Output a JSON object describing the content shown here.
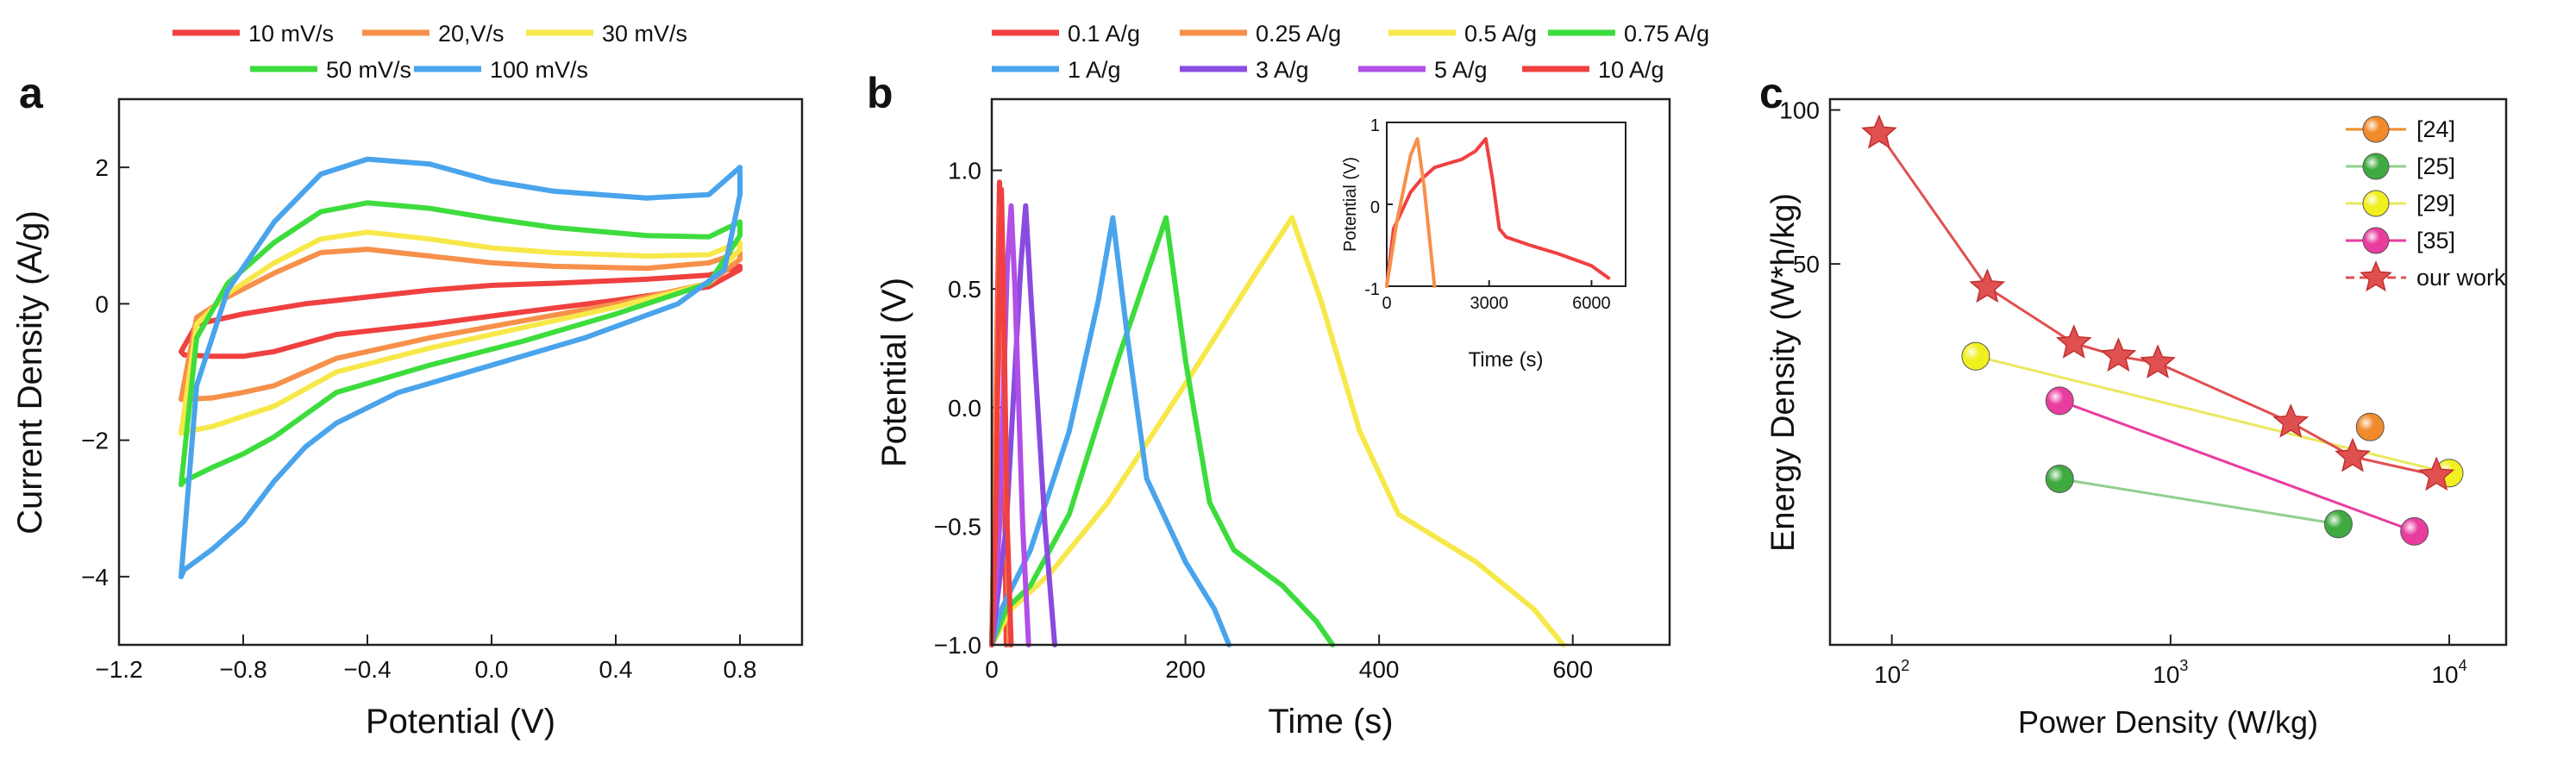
{
  "panels": {
    "a": "a",
    "b": "b",
    "c": "c"
  },
  "chart_data": [
    {
      "type": "line",
      "panel": "a",
      "title": "",
      "xlabel": "Potential (V)",
      "ylabel": "Current Density (A/g)",
      "xlim": [
        -1.2,
        1.0
      ],
      "ylim": [
        -5,
        3
      ],
      "xticks": [
        -1.2,
        -0.8,
        -0.4,
        0.0,
        0.4,
        0.8
      ],
      "xtick_labels": [
        "−1.2",
        "−0.8",
        "−0.4",
        "0.0",
        "0.4",
        "0.8"
      ],
      "yticks": [
        -4,
        -2,
        0,
        2
      ],
      "ytick_labels": [
        "−4",
        "−2",
        "0",
        "2"
      ],
      "legend_position": "top",
      "series": [
        {
          "name": "10 mV/s",
          "color": "#f04040",
          "x": [
            -1.0,
            -0.99,
            -0.9,
            -0.8,
            -0.7,
            -0.5,
            -0.2,
            0.1,
            0.4,
            0.7,
            0.8,
            0.8,
            0.7,
            0.5,
            0.2,
            0.0,
            -0.2,
            -0.4,
            -0.6,
            -0.8,
            -0.95,
            -1.0
          ],
          "y": [
            -0.7,
            -0.75,
            -0.77,
            -0.77,
            -0.7,
            -0.45,
            -0.3,
            -0.12,
            0.05,
            0.25,
            0.5,
            0.55,
            0.42,
            0.36,
            0.3,
            0.27,
            0.2,
            0.1,
            0.0,
            -0.15,
            -0.3,
            -0.7
          ]
        },
        {
          "name": "20,V/s",
          "color": "#f6904a",
          "x": [
            -1.0,
            -0.99,
            -0.9,
            -0.8,
            -0.7,
            -0.5,
            -0.2,
            0.1,
            0.4,
            0.7,
            0.8,
            0.8,
            0.7,
            0.5,
            0.2,
            0.0,
            -0.2,
            -0.4,
            -0.55,
            -0.7,
            -0.85,
            -0.95,
            -1.0
          ],
          "y": [
            -1.4,
            -1.4,
            -1.38,
            -1.3,
            -1.2,
            -0.8,
            -0.5,
            -0.25,
            0.0,
            0.3,
            0.65,
            0.75,
            0.6,
            0.52,
            0.55,
            0.6,
            0.7,
            0.8,
            0.75,
            0.45,
            0.1,
            -0.2,
            -1.4
          ]
        },
        {
          "name": "30 mV/s",
          "color": "#f7e84a",
          "x": [
            -1.0,
            -0.99,
            -0.9,
            -0.8,
            -0.7,
            -0.5,
            -0.2,
            0.1,
            0.4,
            0.7,
            0.8,
            0.8,
            0.7,
            0.5,
            0.2,
            0.0,
            -0.2,
            -0.4,
            -0.55,
            -0.7,
            -0.85,
            -0.95,
            -1.0
          ],
          "y": [
            -1.9,
            -1.88,
            -1.8,
            -1.65,
            -1.5,
            -1.0,
            -0.65,
            -0.35,
            -0.05,
            0.3,
            0.8,
            0.9,
            0.72,
            0.7,
            0.75,
            0.82,
            0.95,
            1.05,
            0.95,
            0.6,
            0.15,
            -0.3,
            -1.9
          ]
        },
        {
          "name": "50 mV/s",
          "color": "#3ddc3d",
          "x": [
            -1.0,
            -0.99,
            -0.9,
            -0.8,
            -0.7,
            -0.5,
            -0.2,
            0.1,
            0.4,
            0.7,
            0.8,
            0.8,
            0.7,
            0.5,
            0.2,
            0.0,
            -0.2,
            -0.4,
            -0.55,
            -0.7,
            -0.85,
            -0.95,
            -1.0
          ],
          "y": [
            -2.65,
            -2.6,
            -2.4,
            -2.2,
            -1.95,
            -1.3,
            -0.9,
            -0.55,
            -0.15,
            0.3,
            1.0,
            1.2,
            0.98,
            1.0,
            1.12,
            1.25,
            1.4,
            1.48,
            1.35,
            0.9,
            0.3,
            -0.5,
            -2.65
          ]
        },
        {
          "name": "100 mV/s",
          "color": "#4aa4ec",
          "x": [
            -1.0,
            -0.99,
            -0.9,
            -0.8,
            -0.7,
            -0.6,
            -0.5,
            -0.3,
            0.0,
            0.3,
            0.6,
            0.75,
            0.8,
            0.8,
            0.7,
            0.5,
            0.2,
            0.0,
            -0.2,
            -0.4,
            -0.55,
            -0.7,
            -0.85,
            -0.95,
            -1.0
          ],
          "y": [
            -4.0,
            -3.9,
            -3.6,
            -3.2,
            -2.6,
            -2.1,
            -1.75,
            -1.3,
            -0.9,
            -0.5,
            0.0,
            0.5,
            1.6,
            2.0,
            1.6,
            1.55,
            1.65,
            1.8,
            2.05,
            2.12,
            1.9,
            1.2,
            0.2,
            -1.2,
            -4.0
          ]
        }
      ]
    },
    {
      "type": "line",
      "panel": "b",
      "title": "",
      "xlabel": "Time (s)",
      "ylabel": "Potential (V)",
      "xlim": [
        0,
        700
      ],
      "ylim": [
        -1.0,
        1.3
      ],
      "xticks": [
        0,
        200,
        400,
        600
      ],
      "xtick_labels": [
        "0",
        "200",
        "400",
        "600"
      ],
      "yticks": [
        -1.0,
        -0.5,
        0.0,
        0.5,
        1.0
      ],
      "ytick_labels": [
        "−1.0",
        "−0.5",
        "0.0",
        "0.5",
        "1.0"
      ],
      "legend_position": "top",
      "series": [
        {
          "name": "0.1 A/g",
          "color": "#f04040",
          "x": [
            0,
            5,
            8,
            12,
            15
          ],
          "y": [
            -1.0,
            0.2,
            0.95,
            0.2,
            -1.0
          ]
        },
        {
          "name": "0.25 A/g",
          "color": "#f6904a",
          "x": [
            0,
            5,
            9,
            13,
            18
          ],
          "y": [
            -1.0,
            0.1,
            0.85,
            0.1,
            -1.0
          ]
        },
        {
          "name": "0.5 A/g",
          "color": "#f7e84a",
          "x": [
            0,
            20,
            60,
            120,
            200,
            270,
            310,
            340,
            380,
            420,
            500,
            560,
            590
          ],
          "y": [
            -1.0,
            -0.85,
            -0.7,
            -0.4,
            0.1,
            0.55,
            0.8,
            0.45,
            -0.1,
            -0.45,
            -0.65,
            -0.85,
            -1.0
          ]
        },
        {
          "name": "0.75 A/g",
          "color": "#3ddc3d",
          "x": [
            0,
            15,
            40,
            80,
            130,
            180,
            200,
            225,
            250,
            300,
            335,
            352
          ],
          "y": [
            -1.0,
            -0.85,
            -0.75,
            -0.45,
            0.2,
            0.8,
            0.2,
            -0.4,
            -0.6,
            -0.75,
            -0.9,
            -1.0
          ]
        },
        {
          "name": "1 A/g",
          "color": "#4aa4ec",
          "x": [
            0,
            10,
            40,
            80,
            110,
            125,
            140,
            160,
            200,
            230,
            245
          ],
          "y": [
            -1.0,
            -0.85,
            -0.6,
            -0.1,
            0.45,
            0.8,
            0.3,
            -0.3,
            -0.65,
            -0.85,
            -1.0
          ]
        },
        {
          "name": "3 A/g",
          "color": "#8a4be0",
          "x": [
            0,
            15,
            30,
            35,
            40,
            55,
            65
          ],
          "y": [
            -1.0,
            -0.5,
            0.6,
            0.85,
            0.5,
            -0.5,
            -1.0
          ]
        },
        {
          "name": "5 A/g",
          "color": "#b24fe6",
          "x": [
            0,
            8,
            16,
            20,
            24,
            32,
            38
          ],
          "y": [
            -1.0,
            -0.5,
            0.6,
            0.85,
            0.5,
            -0.5,
            -1.0
          ]
        },
        {
          "name": "10 A/g",
          "color": "#f04040",
          "x": [
            0,
            4,
            8,
            10,
            12,
            16,
            20
          ],
          "y": [
            -1.0,
            -0.5,
            0.6,
            0.92,
            0.5,
            -0.5,
            -1.0
          ]
        }
      ],
      "inset": {
        "xlabel": "Time (s)",
        "ylabel": "Potential (V)",
        "xlim": [
          0,
          7000
        ],
        "ylim": [
          -1.0,
          1.0
        ],
        "xticks": [
          0,
          3000,
          6000
        ],
        "xtick_labels": [
          "0",
          "3000",
          "6000"
        ],
        "yticks": [
          -1,
          0,
          1
        ],
        "ytick_labels": [
          "-1",
          "0",
          "1"
        ],
        "series": [
          {
            "name": "0.1 A/g",
            "color": "#f04040",
            "x": [
              0,
              200,
              700,
              1000,
              1400,
              1800,
              2200,
              2600,
              2900,
              3100,
              3300,
              3500,
              4200,
              5000,
              6000,
              6500
            ],
            "y": [
              -1.0,
              -0.3,
              0.15,
              0.3,
              0.45,
              0.5,
              0.55,
              0.65,
              0.8,
              0.3,
              -0.3,
              -0.4,
              -0.5,
              -0.6,
              -0.75,
              -0.9
            ]
          },
          {
            "name": "0.25 A/g",
            "color": "#f6904a",
            "x": [
              0,
              300,
              700,
              900,
              1100,
              1400
            ],
            "y": [
              -1.0,
              -0.2,
              0.6,
              0.8,
              0.2,
              -1.0
            ]
          }
        ]
      }
    },
    {
      "type": "scatter",
      "panel": "c",
      "title": "",
      "xlabel": "Power Density (W/kg)",
      "ylabel": "Energy Density (W*h/kg)",
      "xscale": "log",
      "yscale": "log",
      "xlim": [
        60,
        16000
      ],
      "ylim": [
        9,
        105
      ],
      "xtick_labels": [
        "10",
        "10",
        "10"
      ],
      "xtick_exponents": [
        "2",
        "3",
        "4"
      ],
      "xticks": [
        100,
        1000,
        10000
      ],
      "yticks": [
        50,
        100
      ],
      "ytick_labels": [
        "50",
        "100"
      ],
      "legend_position": "top-right",
      "series": [
        {
          "name": "[24]",
          "color": "#f08a2a",
          "marker": "ball",
          "x": [
            5200
          ],
          "y": [
            24
          ]
        },
        {
          "name": "[25]",
          "color": "#3faa3f",
          "marker": "ball",
          "x": [
            400,
            4000
          ],
          "y": [
            19,
            15.5
          ]
        },
        {
          "name": "[29]",
          "color": "#f0f020",
          "marker": "ball",
          "x": [
            200,
            10000
          ],
          "y": [
            33,
            19.5
          ]
        },
        {
          "name": "[35]",
          "color": "#e93c9f",
          "marker": "ball",
          "x": [
            400,
            7500
          ],
          "y": [
            27,
            15
          ]
        },
        {
          "name": "our work",
          "color": "#e05050",
          "marker": "star",
          "x": [
            90,
            220,
            450,
            650,
            900,
            2700,
            4500,
            9000
          ],
          "y": [
            90,
            45,
            35,
            33,
            32,
            24.5,
            21,
            19.3
          ]
        }
      ]
    }
  ]
}
